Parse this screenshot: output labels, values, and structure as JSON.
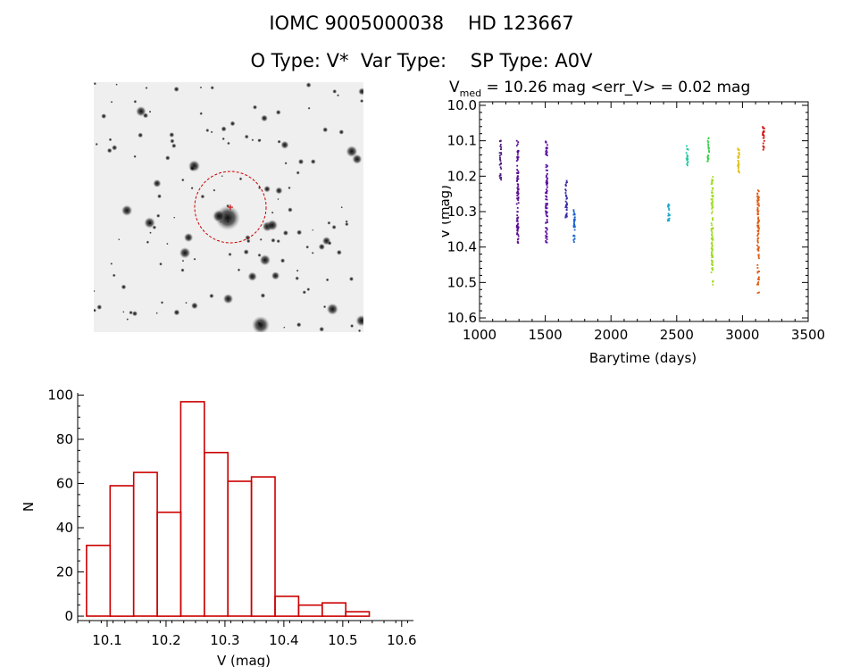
{
  "header": {
    "line1": "IOMC 9005000038    HD 123667",
    "line2": "O Type: V*  Var Type:    SP Type: A0V"
  },
  "light_curve_caption": {
    "prefix": "V",
    "subscript": "med",
    "rest": " = 10.26 mag <err_V> = 0.02 mag"
  },
  "colors": {
    "histogram_bars": "#cc0000",
    "aperture_circle": "#cc0000"
  },
  "chart_data": [
    {
      "type": "scatter",
      "xlabel": "Barytime (days)",
      "ylabel": "V (mag)",
      "xlim": [
        1000,
        3500
      ],
      "ylim": [
        10.61,
        9.99
      ],
      "y_inverted": true,
      "x_ticks": [
        1000,
        1500,
        2000,
        2500,
        3000,
        3500
      ],
      "y_ticks": [
        10.0,
        10.1,
        10.2,
        10.3,
        10.4,
        10.5,
        10.6
      ],
      "y_tick_labels": [
        "10.0",
        "10.1",
        "10.2",
        "10.3",
        "10.4",
        "10.5",
        "10.6"
      ],
      "series": [
        {
          "color": "#4b1a7a",
          "x": 1160,
          "y_range": [
            10.1,
            10.21
          ]
        },
        {
          "color": "#5a0a90",
          "x": 1290,
          "y_range": [
            10.1,
            10.39
          ]
        },
        {
          "color": "#5a10a0",
          "x": 1510,
          "y_range": [
            10.1,
            10.39
          ]
        },
        {
          "color": "#3a2ea8",
          "x": 1660,
          "y_range": [
            10.21,
            10.32
          ]
        },
        {
          "color": "#1a60d0",
          "x": 1720,
          "y_range": [
            10.29,
            10.39
          ]
        },
        {
          "color": "#18a8c8",
          "x": 2440,
          "y_range": [
            10.27,
            10.33
          ]
        },
        {
          "color": "#20c8a0",
          "x": 2580,
          "y_range": [
            10.11,
            10.17
          ]
        },
        {
          "color": "#30d040",
          "x": 2740,
          "y_range": [
            10.09,
            10.16
          ]
        },
        {
          "color": "#a0dc20",
          "x": 2770,
          "y_range": [
            10.2,
            10.51
          ]
        },
        {
          "color": "#e0c010",
          "x": 2970,
          "y_range": [
            10.11,
            10.19
          ]
        },
        {
          "color": "#e05a10",
          "x": 3120,
          "y_range": [
            10.24,
            10.53
          ]
        },
        {
          "color": "#d01010",
          "x": 3160,
          "y_range": [
            10.06,
            10.13
          ]
        }
      ]
    },
    {
      "type": "bar",
      "xlabel": "V (mag)",
      "ylabel": "N",
      "xlim": [
        10.05,
        10.62
      ],
      "ylim": [
        -2,
        101
      ],
      "x_ticks": [
        10.1,
        10.2,
        10.3,
        10.4,
        10.5,
        10.6
      ],
      "x_tick_labels": [
        "10.1",
        "10.2",
        "10.3",
        "10.4",
        "10.5",
        "10.6"
      ],
      "y_ticks": [
        0,
        20,
        40,
        60,
        80,
        100
      ],
      "bin_edges": [
        10.065,
        10.105,
        10.145,
        10.185,
        10.225,
        10.265,
        10.305,
        10.345,
        10.385,
        10.425,
        10.465,
        10.505,
        10.545
      ],
      "values": [
        32,
        59,
        65,
        47,
        97,
        74,
        61,
        63,
        9,
        5,
        6,
        2
      ]
    }
  ]
}
